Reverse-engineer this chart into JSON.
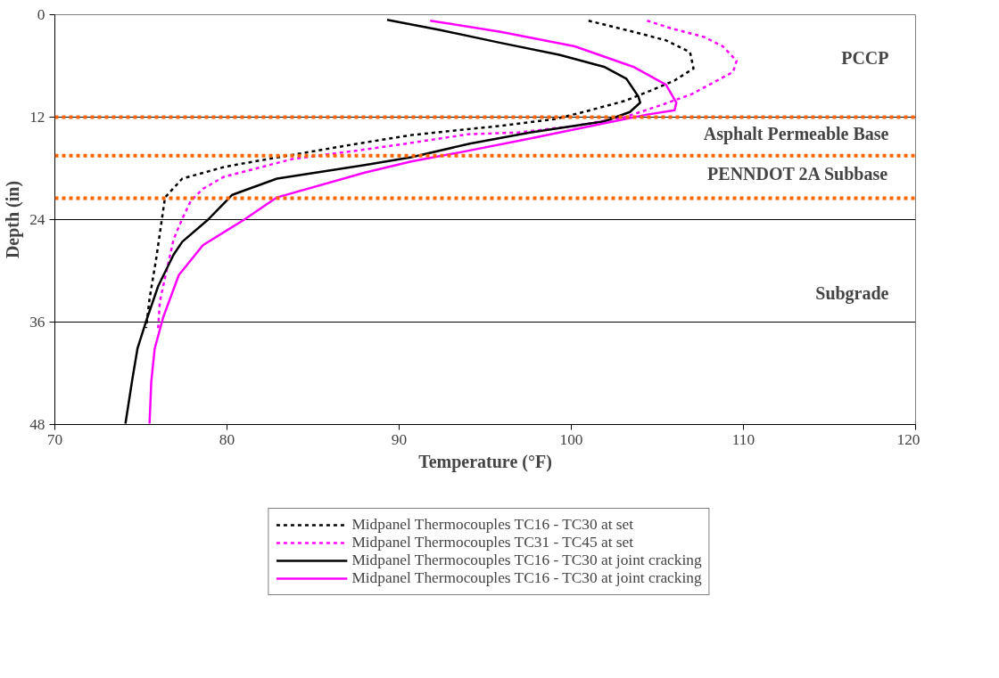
{
  "chart_data": {
    "type": "line",
    "xlabel": "Temperature (°F)",
    "ylabel": "Depth (in)",
    "xlim": [
      70,
      120
    ],
    "xticks": [
      70,
      80,
      90,
      100,
      110,
      120
    ],
    "ylim": [
      48,
      0
    ],
    "yticks": [
      0,
      12,
      24,
      36,
      48
    ],
    "grid": "y",
    "legend": "bottom",
    "marker": "none",
    "series": [
      {
        "name": "Midpanel Thermocouples TC16 - TC30 at set",
        "color": "#000000",
        "line_style": "dashed",
        "x": [
          101.0,
          103.2,
          105.5,
          106.9,
          107.1,
          106.0,
          104.6,
          103.1,
          100.7,
          99.1,
          96.0,
          94.0,
          90.7,
          87.6,
          82.4,
          79.9,
          77.4,
          76.4,
          76.2,
          75.9,
          75.5,
          75.3
        ],
        "values": [
          0.7,
          1.8,
          3.0,
          4.4,
          6.3,
          7.7,
          8.9,
          10.1,
          11.4,
          12.2,
          13.0,
          13.4,
          14.1,
          15.1,
          16.9,
          17.8,
          19.2,
          21.4,
          24.2,
          28.4,
          33.3,
          36.7
        ]
      },
      {
        "name": "Midpanel Thermocouples TC31 - TC45 at set",
        "color": "#ff00ff",
        "line_style": "dashed",
        "x": [
          104.4,
          105.8,
          107.7,
          108.8,
          109.6,
          109.4,
          108.2,
          107.0,
          105.2,
          103.1,
          100.3,
          96.9,
          94.0,
          90.4,
          87.6,
          83.8,
          79.8,
          78.6,
          77.9,
          77.4,
          76.9,
          76.4,
          76.1,
          76.0
        ],
        "values": [
          0.7,
          1.6,
          2.6,
          3.7,
          5.4,
          6.7,
          8.0,
          9.3,
          10.6,
          12.0,
          13.0,
          13.8,
          14.0,
          15.1,
          15.9,
          16.9,
          19.0,
          20.4,
          21.8,
          23.9,
          26.3,
          30.8,
          33.6,
          36.7
        ]
      },
      {
        "name": "Midpanel Thermocouples TC16 - TC30 at joint cracking",
        "color": "#000000",
        "line_style": "solid",
        "x": [
          89.3,
          92.4,
          95.9,
          99.3,
          101.9,
          103.2,
          103.9,
          104.0,
          103.4,
          101.9,
          97.6,
          94.1,
          90.7,
          88.0,
          82.9,
          80.3,
          78.9,
          77.4,
          76.9,
          76.0,
          75.3,
          74.8,
          74.5,
          74.1
        ],
        "values": [
          0.6,
          1.8,
          3.3,
          4.7,
          6.1,
          7.5,
          9.6,
          10.3,
          11.4,
          12.5,
          13.8,
          15.1,
          16.7,
          17.6,
          19.2,
          21.1,
          24.0,
          26.6,
          28.1,
          31.8,
          35.9,
          39.1,
          42.7,
          47.9
        ]
      },
      {
        "name": "Midpanel Thermocouples TC16 - TC30 at joint cracking",
        "color": "#ff00ff",
        "line_style": "solid",
        "x": [
          91.8,
          95.9,
          100.2,
          103.6,
          105.5,
          106.1,
          106.0,
          104.4,
          101.0,
          97.6,
          94.1,
          90.7,
          88.0,
          82.9,
          81.0,
          78.6,
          77.2,
          76.3,
          75.8,
          75.6,
          75.5
        ],
        "values": [
          0.7,
          2.0,
          3.7,
          6.1,
          8.2,
          10.3,
          11.2,
          11.7,
          13.1,
          14.5,
          15.9,
          17.2,
          18.5,
          21.4,
          24.0,
          27.0,
          30.5,
          35.4,
          39.1,
          43.0,
          47.9
        ]
      }
    ],
    "ref_lines": [
      {
        "axis": "y",
        "value": 12,
        "color": "#ff6600",
        "line_style": "dashed"
      },
      {
        "axis": "y",
        "value": 16.5,
        "color": "#ff6600",
        "line_style": "dashed"
      },
      {
        "axis": "y",
        "value": 21.5,
        "color": "#ff6600",
        "line_style": "dashed"
      }
    ],
    "annotations": [
      "PCCP",
      "Asphalt Permeable Base",
      "PENNDOT 2A Subbase",
      "Subgrade"
    ]
  }
}
